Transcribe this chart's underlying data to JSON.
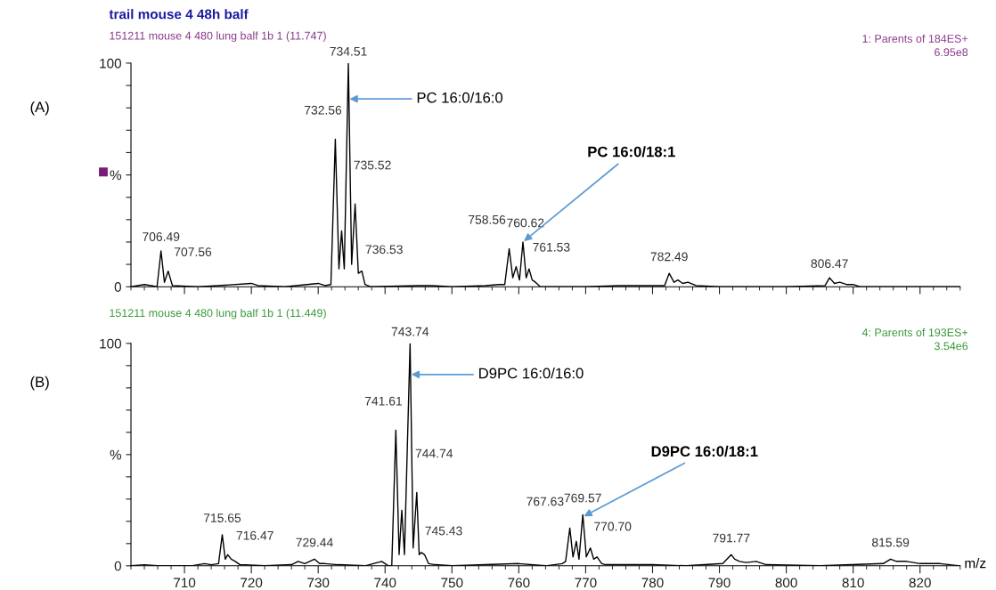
{
  "chart_data": [
    {
      "type": "line",
      "title": "trail mouse 4 48h balf",
      "subtitle": "151211 mouse 4 480 lung balf 1b 1 (11.747)",
      "series": [
        {
          "color": "#000000",
          "x": [
            702,
            703,
            704,
            705,
            705.9,
            706.49,
            707.0,
            707.56,
            708.2,
            712,
            715,
            720,
            721,
            725,
            730,
            731,
            731.9,
            732.56,
            733.1,
            733.5,
            733.9,
            734.51,
            735.0,
            735.52,
            736.0,
            736.53,
            737.0,
            737.8,
            745,
            747,
            750,
            755,
            757,
            757.9,
            758.56,
            759.1,
            759.6,
            760.1,
            760.62,
            761.1,
            761.53,
            762.0,
            762.5,
            763.2,
            770,
            775,
            781.8,
            782.49,
            783.2,
            783.8,
            784.5,
            785.3,
            786.5,
            790,
            800,
            805.8,
            806.47,
            807.2,
            808,
            809,
            810,
            811,
            826
          ],
          "values": [
            0,
            0.5,
            1,
            0.5,
            0,
            16,
            2,
            7,
            0.5,
            0,
            0.5,
            1.5,
            0.5,
            0,
            1.5,
            0.5,
            1,
            66,
            8,
            25,
            8,
            100,
            10,
            37,
            6,
            7,
            1,
            0,
            0.5,
            0.5,
            0,
            0.5,
            1,
            1,
            17,
            4,
            9,
            3,
            20,
            4,
            8,
            3,
            2,
            0,
            0,
            0.5,
            0.5,
            6,
            2,
            3,
            1.5,
            2,
            0.5,
            0,
            0,
            0.5,
            4,
            1.5,
            2,
            1,
            1,
            0,
            0
          ]
        }
      ],
      "xlim": [
        702,
        826
      ],
      "xticks": [
        {
          "value": 710,
          "label": null
        },
        {
          "value": 720,
          "label": null
        },
        {
          "value": 730,
          "label": null
        },
        {
          "value": 740,
          "label": null
        },
        {
          "value": 750,
          "label": null
        },
        {
          "value": 760,
          "label": null
        },
        {
          "value": 770,
          "label": null
        },
        {
          "value": 780,
          "label": null
        },
        {
          "value": 790,
          "label": null
        },
        {
          "value": 800,
          "label": null
        },
        {
          "value": 810,
          "label": null
        },
        {
          "value": 820,
          "label": null
        }
      ],
      "ylim": [
        0,
        100
      ],
      "yticks": [
        0,
        {
          "value": 10,
          "label": null
        },
        {
          "value": 20,
          "label": null
        },
        {
          "value": 30,
          "label": null
        },
        {
          "value": 40,
          "label": null
        },
        {
          "value": 50,
          "label": "%"
        },
        {
          "value": 60,
          "label": null
        },
        {
          "value": 70,
          "label": null
        },
        {
          "value": 80,
          "label": null
        },
        {
          "value": 90,
          "label": null
        },
        100
      ],
      "tick_labels": "y",
      "annotations": [
        "(A)",
        "1: Parents of 184ES+",
        "6.95e8",
        {
          "text": "706.49",
          "x": 706.49,
          "y": 16
        },
        {
          "text": "707.56",
          "x": 707.56,
          "y": 7
        },
        {
          "text": "732.56",
          "x": 732.56,
          "y": 66
        },
        {
          "text": "734.51",
          "x": 734.51,
          "y": 100
        },
        {
          "text": "735.52",
          "x": 735.52,
          "y": 37
        },
        {
          "text": "736.53",
          "x": 736.53,
          "y": 7
        },
        {
          "text": "758.56",
          "x": 758.56,
          "y": 17
        },
        {
          "text": "760.62",
          "x": 760.62,
          "y": 20
        },
        {
          "text": "761.53",
          "x": 761.53,
          "y": 8
        },
        {
          "text": "782.49",
          "x": 782.49,
          "y": 6
        },
        {
          "text": "806.47",
          "x": 806.47,
          "y": 4
        },
        {
          "text": "PC 16:0/16:0",
          "x": 734.51,
          "y": 84
        },
        {
          "text": "PC 16:0/18:1",
          "x": 760.62,
          "y": 20
        }
      ]
    },
    {
      "type": "line",
      "subtitle": "151211 mouse 4 480 lung balf 1b 1 (11.449)",
      "xlabel": "m/z",
      "series": [
        {
          "color": "#000000",
          "x": [
            702,
            704,
            706,
            711,
            713,
            714,
            715.1,
            715.65,
            716.1,
            716.47,
            717.0,
            717.6,
            718.3,
            722,
            726,
            727,
            728,
            729.44,
            730.2,
            731,
            733,
            737,
            739.5,
            740.5,
            741.0,
            741.61,
            742.1,
            742.5,
            742.9,
            743.74,
            744.2,
            744.74,
            745.1,
            745.43,
            745.9,
            746.5,
            747.5,
            750,
            755,
            760,
            764,
            766.5,
            767.0,
            767.63,
            768.1,
            768.6,
            769.0,
            769.57,
            770.1,
            770.7,
            771.2,
            771.7,
            772.4,
            773,
            780,
            785,
            790.5,
            791.77,
            792.3,
            793,
            794,
            795.5,
            797,
            805,
            814.5,
            815.59,
            816.5,
            818,
            820,
            823,
            826
          ],
          "values": [
            0,
            0.5,
            0,
            0,
            1,
            0.5,
            1,
            14,
            3,
            5,
            3,
            2,
            0.5,
            0,
            0.5,
            2,
            1,
            3,
            1,
            1,
            0.5,
            0,
            2,
            0,
            0,
            61,
            5,
            25,
            5,
            100,
            8,
            33,
            5,
            6,
            5,
            1,
            0.5,
            0,
            0.5,
            1,
            0,
            1,
            2,
            17,
            4,
            11,
            3,
            23,
            4,
            8,
            3,
            4,
            1,
            0.5,
            0.5,
            0,
            1,
            5,
            3,
            2,
            1.5,
            2,
            0.5,
            0,
            1,
            3,
            2,
            2,
            1,
            1,
            0
          ]
        }
      ],
      "xlim": [
        702,
        826
      ],
      "xticks": [
        710,
        720,
        730,
        740,
        750,
        760,
        770,
        780,
        790,
        800,
        810,
        820
      ],
      "ylim": [
        0,
        100
      ],
      "yticks": [
        0,
        {
          "value": 10,
          "label": null
        },
        {
          "value": 20,
          "label": null
        },
        {
          "value": 30,
          "label": null
        },
        {
          "value": 40,
          "label": null
        },
        {
          "value": 50,
          "label": "%"
        },
        {
          "value": 60,
          "label": null
        },
        {
          "value": 70,
          "label": null
        },
        {
          "value": 80,
          "label": null
        },
        {
          "value": 90,
          "label": null
        },
        100
      ],
      "annotations": [
        "(B)",
        "4: Parents of 193ES+",
        "3.54e6",
        {
          "text": "715.65",
          "x": 715.65,
          "y": 14
        },
        {
          "text": "716.47",
          "x": 716.47,
          "y": 5
        },
        {
          "text": "729.44",
          "x": 729.44,
          "y": 3
        },
        {
          "text": "741.61",
          "x": 741.61,
          "y": 61
        },
        {
          "text": "743.74",
          "x": 743.74,
          "y": 100
        },
        {
          "text": "744.74",
          "x": 744.74,
          "y": 33
        },
        {
          "text": "745.43",
          "x": 745.43,
          "y": 6
        },
        {
          "text": "767.63",
          "x": 767.63,
          "y": 17
        },
        {
          "text": "769.57",
          "x": 769.57,
          "y": 23
        },
        {
          "text": "770.70",
          "x": 770.7,
          "y": 8
        },
        {
          "text": "791.77",
          "x": 791.77,
          "y": 5
        },
        {
          "text": "815.59",
          "x": 815.59,
          "y": 3
        },
        {
          "text": "D9PC 16:0/16:0",
          "x": 743.74,
          "y": 86
        },
        {
          "text": "D9PC 16:0/18:1",
          "x": 769.57,
          "y": 22
        }
      ]
    }
  ]
}
